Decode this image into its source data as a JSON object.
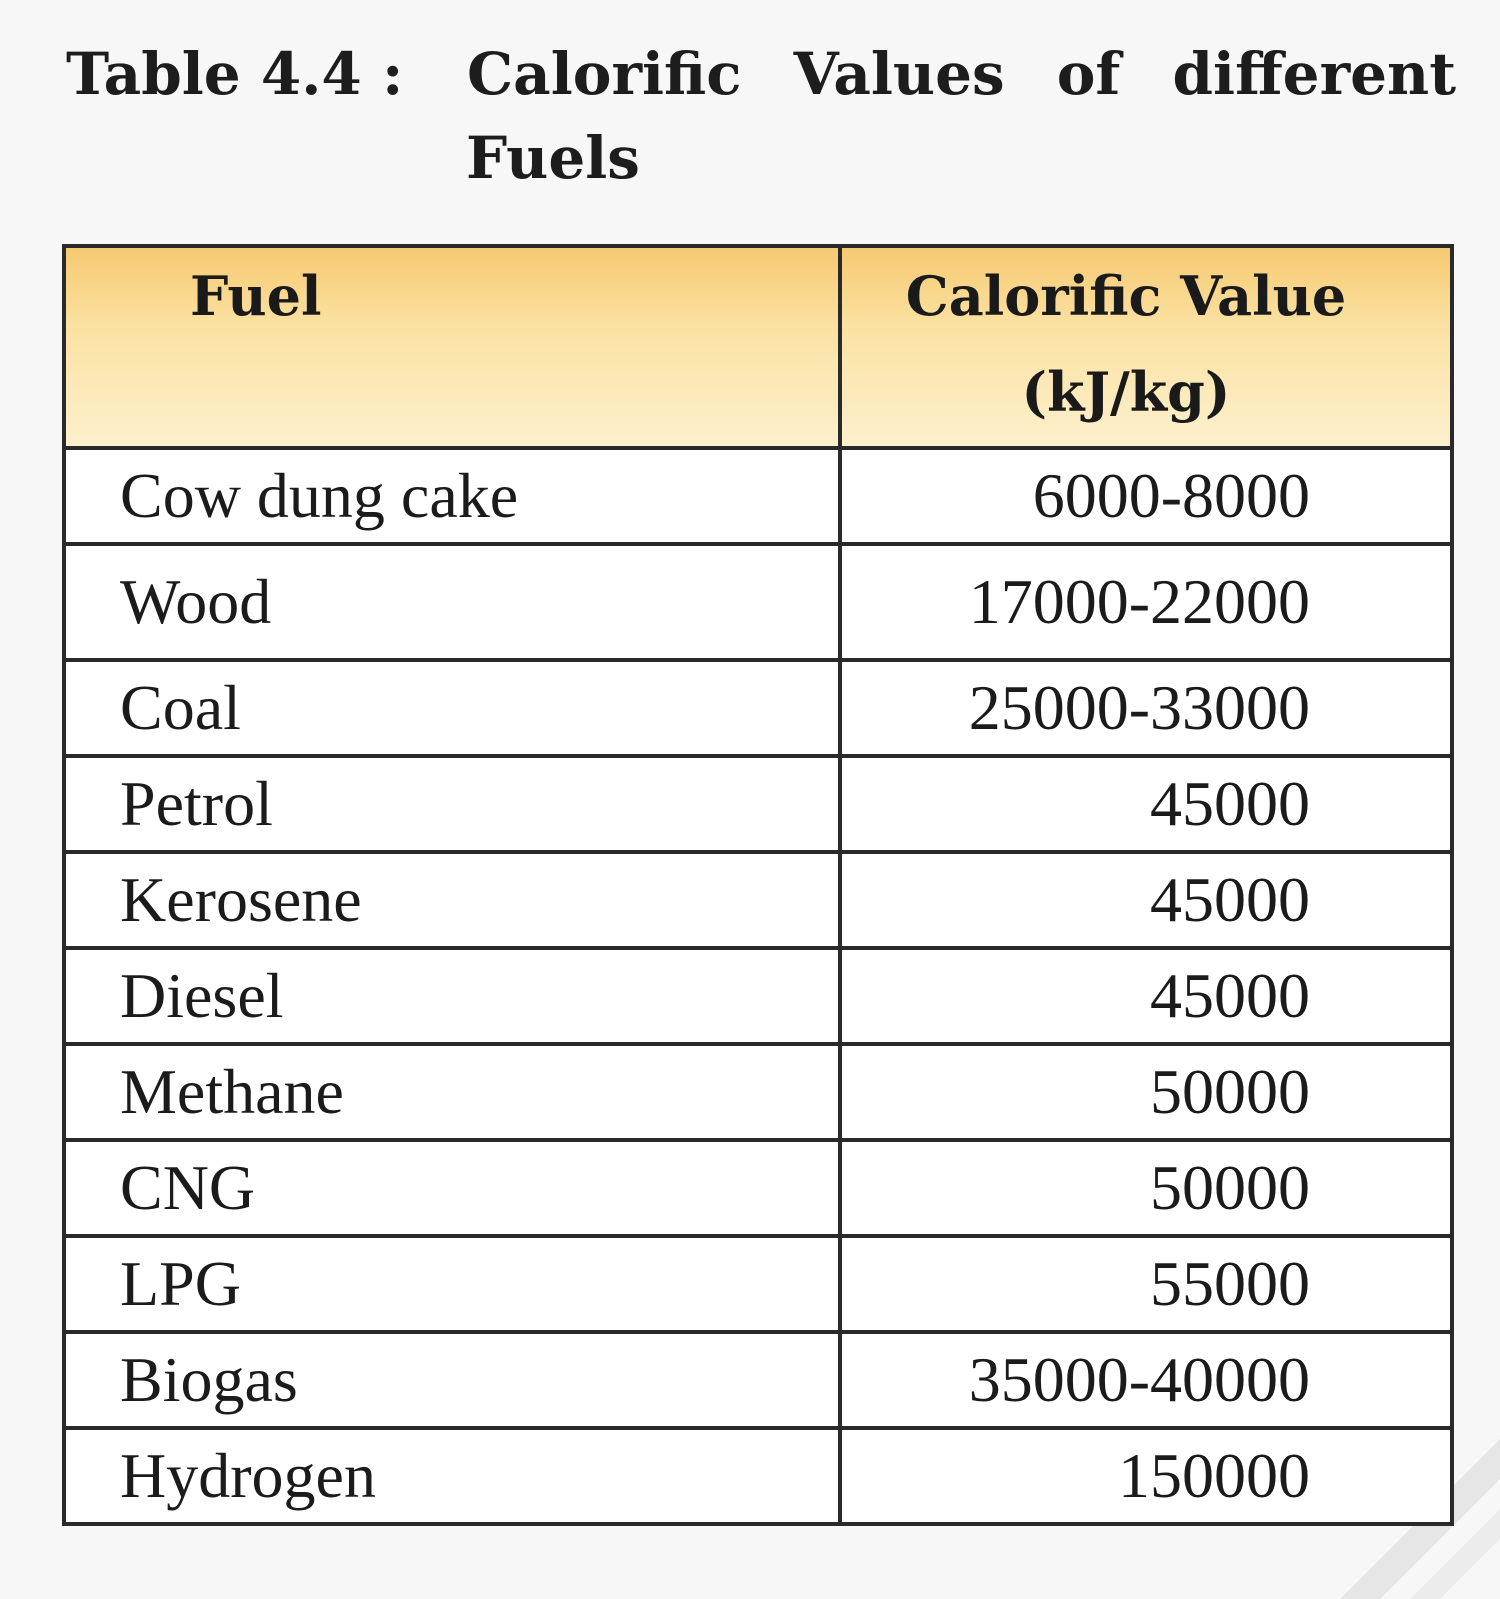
{
  "caption": {
    "label": "Table 4.4 :",
    "title_words": [
      "Calorific",
      "Values",
      "of",
      "different"
    ],
    "title_line2": "Fuels"
  },
  "table": {
    "headers": {
      "fuel": "Fuel",
      "value_line1": "Calorific Value",
      "value_line2": "(kJ/kg)"
    },
    "rows": [
      {
        "fuel": "Cow dung cake",
        "value": "6000-8000"
      },
      {
        "fuel": "Wood",
        "value": "17000-22000"
      },
      {
        "fuel": "Coal",
        "value": "25000-33000"
      },
      {
        "fuel": "Petrol",
        "value": "45000"
      },
      {
        "fuel": "Kerosene",
        "value": "45000"
      },
      {
        "fuel": "Diesel",
        "value": "45000"
      },
      {
        "fuel": "Methane",
        "value": "50000"
      },
      {
        "fuel": "CNG",
        "value": "50000"
      },
      {
        "fuel": "LPG",
        "value": "55000"
      },
      {
        "fuel": "Biogas",
        "value": "35000-40000"
      },
      {
        "fuel": "Hydrogen",
        "value": "150000"
      }
    ]
  },
  "colors": {
    "header_fill_top": "#f6c971",
    "header_fill_bottom": "#fdf0cd",
    "border": "#2a2a2a",
    "page_background": "#f7f7f7"
  }
}
